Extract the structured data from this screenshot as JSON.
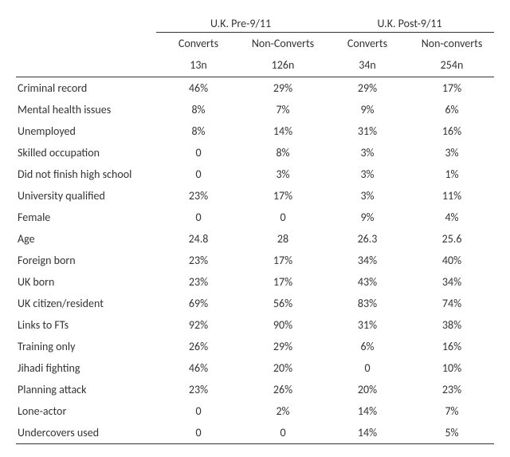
{
  "table": {
    "type": "table",
    "background_color": "#ffffff",
    "text_color": "#333333",
    "border_color": "#333333",
    "font_family": "Calibri",
    "font_size_pt": 11,
    "groups": [
      {
        "label": "U.K. Pre-9/11",
        "sub": [
          "Converts",
          "Non-Converts"
        ],
        "n": [
          "13n",
          "126n"
        ]
      },
      {
        "label": "U.K. Post-9/11",
        "sub": [
          "Converts",
          "Non-converts"
        ],
        "n": [
          "34n",
          "254n"
        ]
      }
    ],
    "rows": [
      {
        "label": "Criminal record",
        "values": [
          "46%",
          "29%",
          "29%",
          "17%"
        ]
      },
      {
        "label": "Mental health issues",
        "values": [
          "8%",
          "7%",
          "9%",
          "6%"
        ]
      },
      {
        "label": "Unemployed",
        "values": [
          "8%",
          "14%",
          "31%",
          "16%"
        ]
      },
      {
        "label": "Skilled occupation",
        "values": [
          "0",
          "8%",
          "3%",
          "3%"
        ]
      },
      {
        "label": "Did not finish high school",
        "values": [
          "0",
          "3%",
          "3%",
          "1%"
        ]
      },
      {
        "label": "University qualified",
        "values": [
          "23%",
          "17%",
          "3%",
          "11%"
        ]
      },
      {
        "label": "Female",
        "values": [
          "0",
          "0",
          "9%",
          "4%"
        ]
      },
      {
        "label": "Age",
        "values": [
          "24.8",
          "28",
          "26.3",
          "25.6"
        ]
      },
      {
        "label": "Foreign born",
        "values": [
          "23%",
          "17%",
          "34%",
          "40%"
        ]
      },
      {
        "label": "UK born",
        "values": [
          "23%",
          "17%",
          "43%",
          "34%"
        ]
      },
      {
        "label": "UK citizen/resident",
        "values": [
          "69%",
          "56%",
          "83%",
          "74%"
        ]
      },
      {
        "label": "Links to FTs",
        "values": [
          "92%",
          "90%",
          "31%",
          "38%"
        ]
      },
      {
        "label": "Training only",
        "values": [
          "26%",
          "29%",
          "6%",
          "16%"
        ]
      },
      {
        "label": "Jihadi fighting",
        "values": [
          "46%",
          "20%",
          "0",
          "10%"
        ]
      },
      {
        "label": "Planning attack",
        "values": [
          "23%",
          "26%",
          "20%",
          "23%"
        ]
      },
      {
        "label": "Lone-actor",
        "values": [
          "0",
          "2%",
          "14%",
          "7%"
        ]
      },
      {
        "label": "Undercovers used",
        "values": [
          "0",
          "0",
          "14%",
          "5%"
        ]
      }
    ]
  }
}
